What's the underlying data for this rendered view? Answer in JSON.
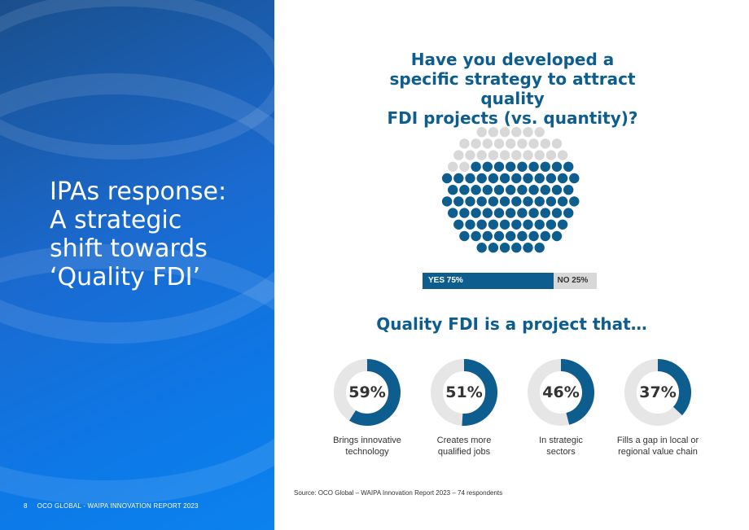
{
  "left_panel": {
    "title_lines": [
      "IPAs response:",
      "A strategic",
      "shift towards",
      "‘Quality FDI’"
    ],
    "page_number": "8",
    "footer_text": "OCO GLOBAL - WAIPA INNOVATION REPORT 2023"
  },
  "question_lines": [
    "Have you developed a",
    "specific strategy to attract quality",
    "FDI projects (vs. quantity)?"
  ],
  "subtitle": "Quality FDI is a project that…",
  "source": "Source: OCO Global – WAIPA Innovation Report 2023 – 74 respondents",
  "colors": {
    "primary": "#0e5d8f",
    "neutral": "#d8d8d8"
  },
  "chart_data": [
    {
      "type": "pie",
      "categories": [
        "YES",
        "NO"
      ],
      "values": [
        75,
        25
      ],
      "labels": [
        "YES 75%",
        "NO 25%"
      ]
    },
    {
      "type": "pie",
      "categories": [
        "Brings innovative technology",
        "Creates more qualified jobs",
        "In strategic sectors",
        "Fills a gap in local or regional value chain"
      ],
      "values": [
        59,
        51,
        46,
        37
      ],
      "labels": [
        "59%",
        "51%",
        "46%",
        "37%"
      ]
    }
  ],
  "donuts": [
    {
      "label": "59%",
      "caption_lines": [
        "Brings innovative",
        "technology"
      ]
    },
    {
      "label": "51%",
      "caption_lines": [
        "Creates more",
        "qualified jobs"
      ]
    },
    {
      "label": "46%",
      "caption_lines": [
        "In strategic",
        "sectors"
      ]
    },
    {
      "label": "37%",
      "caption_lines": [
        "Fills a gap in local or",
        "regional value chain"
      ]
    }
  ]
}
